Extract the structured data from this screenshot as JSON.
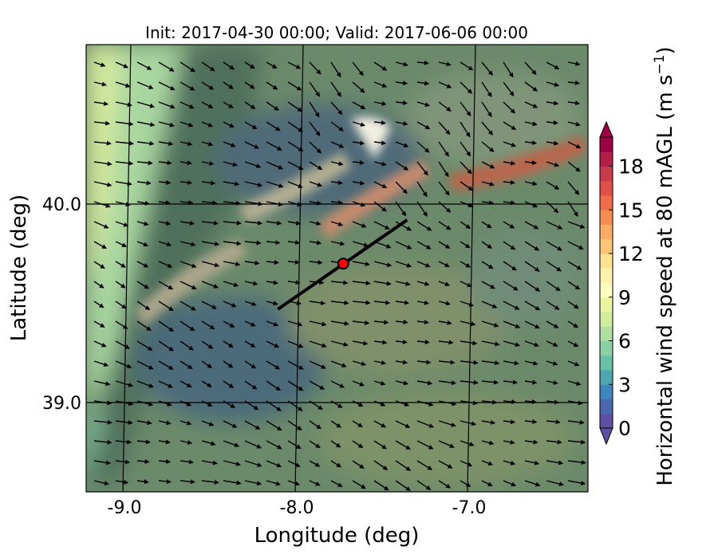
{
  "title": "Init: 2017-04-30 00:00; Valid: 2017-06-06 00:00",
  "xaxis": {
    "label": "Longitude (deg)",
    "ticks": [
      {
        "value": -9.0,
        "label": "-9.0"
      },
      {
        "value": -8.0,
        "label": "-8.0"
      },
      {
        "value": -7.0,
        "label": "-7.0"
      }
    ],
    "range": [
      -9.2,
      -6.35
    ]
  },
  "yaxis": {
    "label": "Latitude (deg)",
    "ticks": [
      {
        "value": 40.0,
        "label": "40.0"
      },
      {
        "value": 39.0,
        "label": "39.0"
      }
    ],
    "range": [
      38.55,
      40.8
    ]
  },
  "colorbar": {
    "label": "Horizontal wind speed at 80 mAGL (m s",
    "label_sup": "−1",
    "label_end": ")",
    "ticks": [
      "0",
      "3",
      "6",
      "9",
      "12",
      "15",
      "18"
    ],
    "tick_values": [
      0,
      3,
      6,
      9,
      12,
      15,
      18
    ],
    "levels_min": 0,
    "levels_max": 20,
    "extend": "both",
    "colors": [
      "#5e4fa2",
      "#4a68ae",
      "#3f86bc",
      "#4ea7b0",
      "#68c1a5",
      "#8ad0a4",
      "#b0dfa2",
      "#d2ed9b",
      "#eaf69e",
      "#fbfdbc",
      "#fff3ac",
      "#fee391",
      "#fdc674",
      "#fdab63",
      "#f88d52",
      "#ee6c49",
      "#df5148",
      "#c93b4b",
      "#b41e48",
      "#9e0142"
    ]
  },
  "chart_data": {
    "type": "heatmap",
    "title": "Init: 2017-04-30 00:00; Valid: 2017-06-06 00:00",
    "xlabel": "Longitude (deg)",
    "ylabel": "Latitude (deg)",
    "xlim": [
      -9.2,
      -6.35
    ],
    "ylim": [
      38.55,
      40.8
    ],
    "grid": true,
    "overlays": {
      "wind_vectors": "quiver, mostly from WNW/NW",
      "transect_line": {
        "start": [
          -8.11,
          39.47
        ],
        "end": [
          -7.36,
          39.92
        ],
        "color": "#000000"
      },
      "site_marker": {
        "lon": -7.73,
        "lat": 39.7,
        "color": "#ff0000"
      }
    }
  }
}
